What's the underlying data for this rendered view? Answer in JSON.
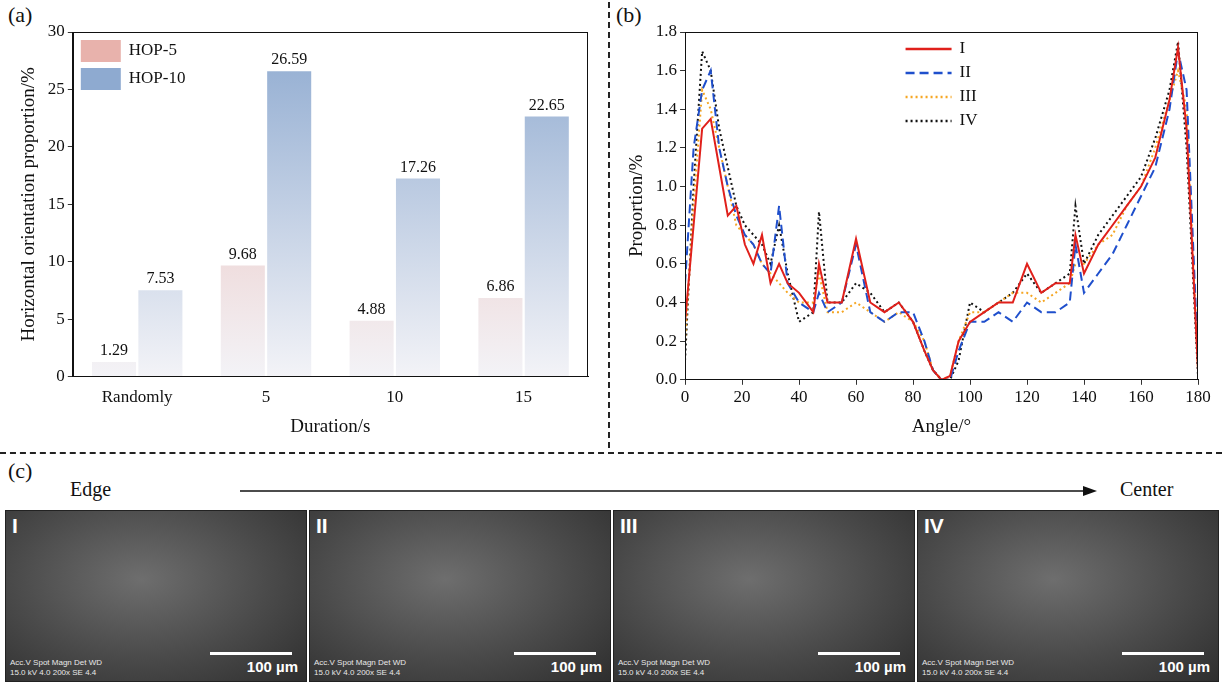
{
  "chart_data": [
    {
      "label": "(a)",
      "type": "bar",
      "categories": [
        "Randomly",
        "5",
        "10",
        "15"
      ],
      "series": [
        {
          "name": "HOP-5",
          "color": "#e8b2ac",
          "values": [
            1.29,
            9.68,
            4.88,
            6.86
          ]
        },
        {
          "name": "HOP-10",
          "color": "#8eaad0",
          "values": [
            7.53,
            26.59,
            17.26,
            22.65
          ]
        }
      ],
      "x_label": "Duration/s",
      "y_label": "Horizontal orientation proportion/%",
      "ylim": [
        0,
        30
      ],
      "yticks": [
        0,
        5,
        10,
        15,
        20,
        25,
        30
      ],
      "grid": false,
      "legend": "top-left",
      "data_labels": true
    },
    {
      "label": "(b)",
      "type": "line",
      "x": [
        0,
        3,
        6,
        9,
        12,
        15,
        18,
        21,
        24,
        27,
        30,
        33,
        36,
        40,
        45,
        47,
        50,
        55,
        60,
        65,
        70,
        75,
        80,
        84,
        87,
        90,
        93,
        96,
        100,
        105,
        110,
        115,
        120,
        125,
        130,
        135,
        137,
        140,
        145,
        150,
        155,
        160,
        165,
        170,
        173,
        176,
        180
      ],
      "series": [
        {
          "name": "I",
          "color": "#e0201b",
          "line_style": "solid",
          "values": [
            0.3,
            0.8,
            1.3,
            1.35,
            1.1,
            0.85,
            0.9,
            0.7,
            0.6,
            0.75,
            0.5,
            0.6,
            0.5,
            0.45,
            0.35,
            0.6,
            0.4,
            0.4,
            0.73,
            0.4,
            0.35,
            0.4,
            0.3,
            0.15,
            0.05,
            0,
            0.02,
            0.2,
            0.3,
            0.35,
            0.4,
            0.4,
            0.6,
            0.45,
            0.5,
            0.5,
            0.75,
            0.55,
            0.7,
            0.8,
            0.9,
            1.0,
            1.15,
            1.45,
            1.72,
            1.3,
            0.05
          ]
        },
        {
          "name": "II",
          "color": "#1f4fcc",
          "line_style": "dashed",
          "values": [
            0.5,
            1.2,
            1.5,
            1.6,
            1.2,
            1.0,
            0.85,
            0.75,
            0.7,
            0.6,
            0.55,
            0.9,
            0.5,
            0.4,
            0.35,
            0.45,
            0.35,
            0.4,
            0.7,
            0.35,
            0.3,
            0.35,
            0.35,
            0.2,
            0.05,
            0,
            0,
            0.15,
            0.3,
            0.3,
            0.35,
            0.3,
            0.4,
            0.35,
            0.35,
            0.4,
            0.7,
            0.45,
            0.55,
            0.65,
            0.8,
            0.95,
            1.1,
            1.4,
            1.7,
            1.5,
            0.1
          ]
        },
        {
          "name": "III",
          "color": "#f5a623",
          "line_style": "dotted",
          "values": [
            0.2,
            0.9,
            1.5,
            1.4,
            1.2,
            1.0,
            0.8,
            0.75,
            0.7,
            0.6,
            0.55,
            0.5,
            0.45,
            0.4,
            0.4,
            0.55,
            0.35,
            0.35,
            0.4,
            0.35,
            0.3,
            0.35,
            0.3,
            0.2,
            0.05,
            0,
            0.02,
            0.2,
            0.35,
            0.35,
            0.4,
            0.45,
            0.45,
            0.4,
            0.45,
            0.5,
            0.6,
            0.6,
            0.7,
            0.75,
            0.9,
            1.0,
            1.2,
            1.45,
            1.6,
            1.4,
            0.05
          ]
        },
        {
          "name": "IV",
          "color": "#111111",
          "line_style": "dotted",
          "values": [
            0.1,
            1.0,
            1.7,
            1.6,
            1.3,
            1.1,
            0.9,
            0.8,
            0.75,
            0.7,
            0.6,
            0.8,
            0.55,
            0.3,
            0.35,
            0.87,
            0.4,
            0.4,
            0.5,
            0.45,
            0.35,
            0.4,
            0.3,
            0.15,
            0.05,
            0,
            0,
            0.1,
            0.4,
            0.35,
            0.4,
            0.45,
            0.55,
            0.45,
            0.5,
            0.55,
            0.9,
            0.6,
            0.75,
            0.85,
            0.95,
            1.05,
            1.25,
            1.5,
            1.75,
            1.2,
            0.02
          ]
        }
      ],
      "x_label": "Angle/°",
      "y_label": "Proportion/%",
      "xlim": [
        0,
        180
      ],
      "xticks": [
        0,
        20,
        40,
        60,
        80,
        100,
        120,
        140,
        160,
        180
      ],
      "ylim": [
        0,
        1.8
      ],
      "yticks": [
        {
          "value": 0,
          "label": "0.0"
        },
        0.2,
        0.4,
        0.6,
        0.8,
        {
          "value": 1,
          "label": "1.0"
        },
        1.2,
        1.4,
        1.6,
        1.8
      ],
      "grid": false,
      "legend": "top",
      "marker": "none"
    }
  ],
  "panel_c": {
    "label": "(c)",
    "arrow_from": "Edge",
    "arrow_to": "Center",
    "images": [
      {
        "label": "I"
      },
      {
        "label": "II"
      },
      {
        "label": "III"
      },
      {
        "label": "IV"
      }
    ],
    "scale_bar": "100 µm",
    "image_info": [
      "Acc.V Spot Magn   Det WD",
      "15.0 kV 4.0  200x   SE 4.4"
    ]
  }
}
